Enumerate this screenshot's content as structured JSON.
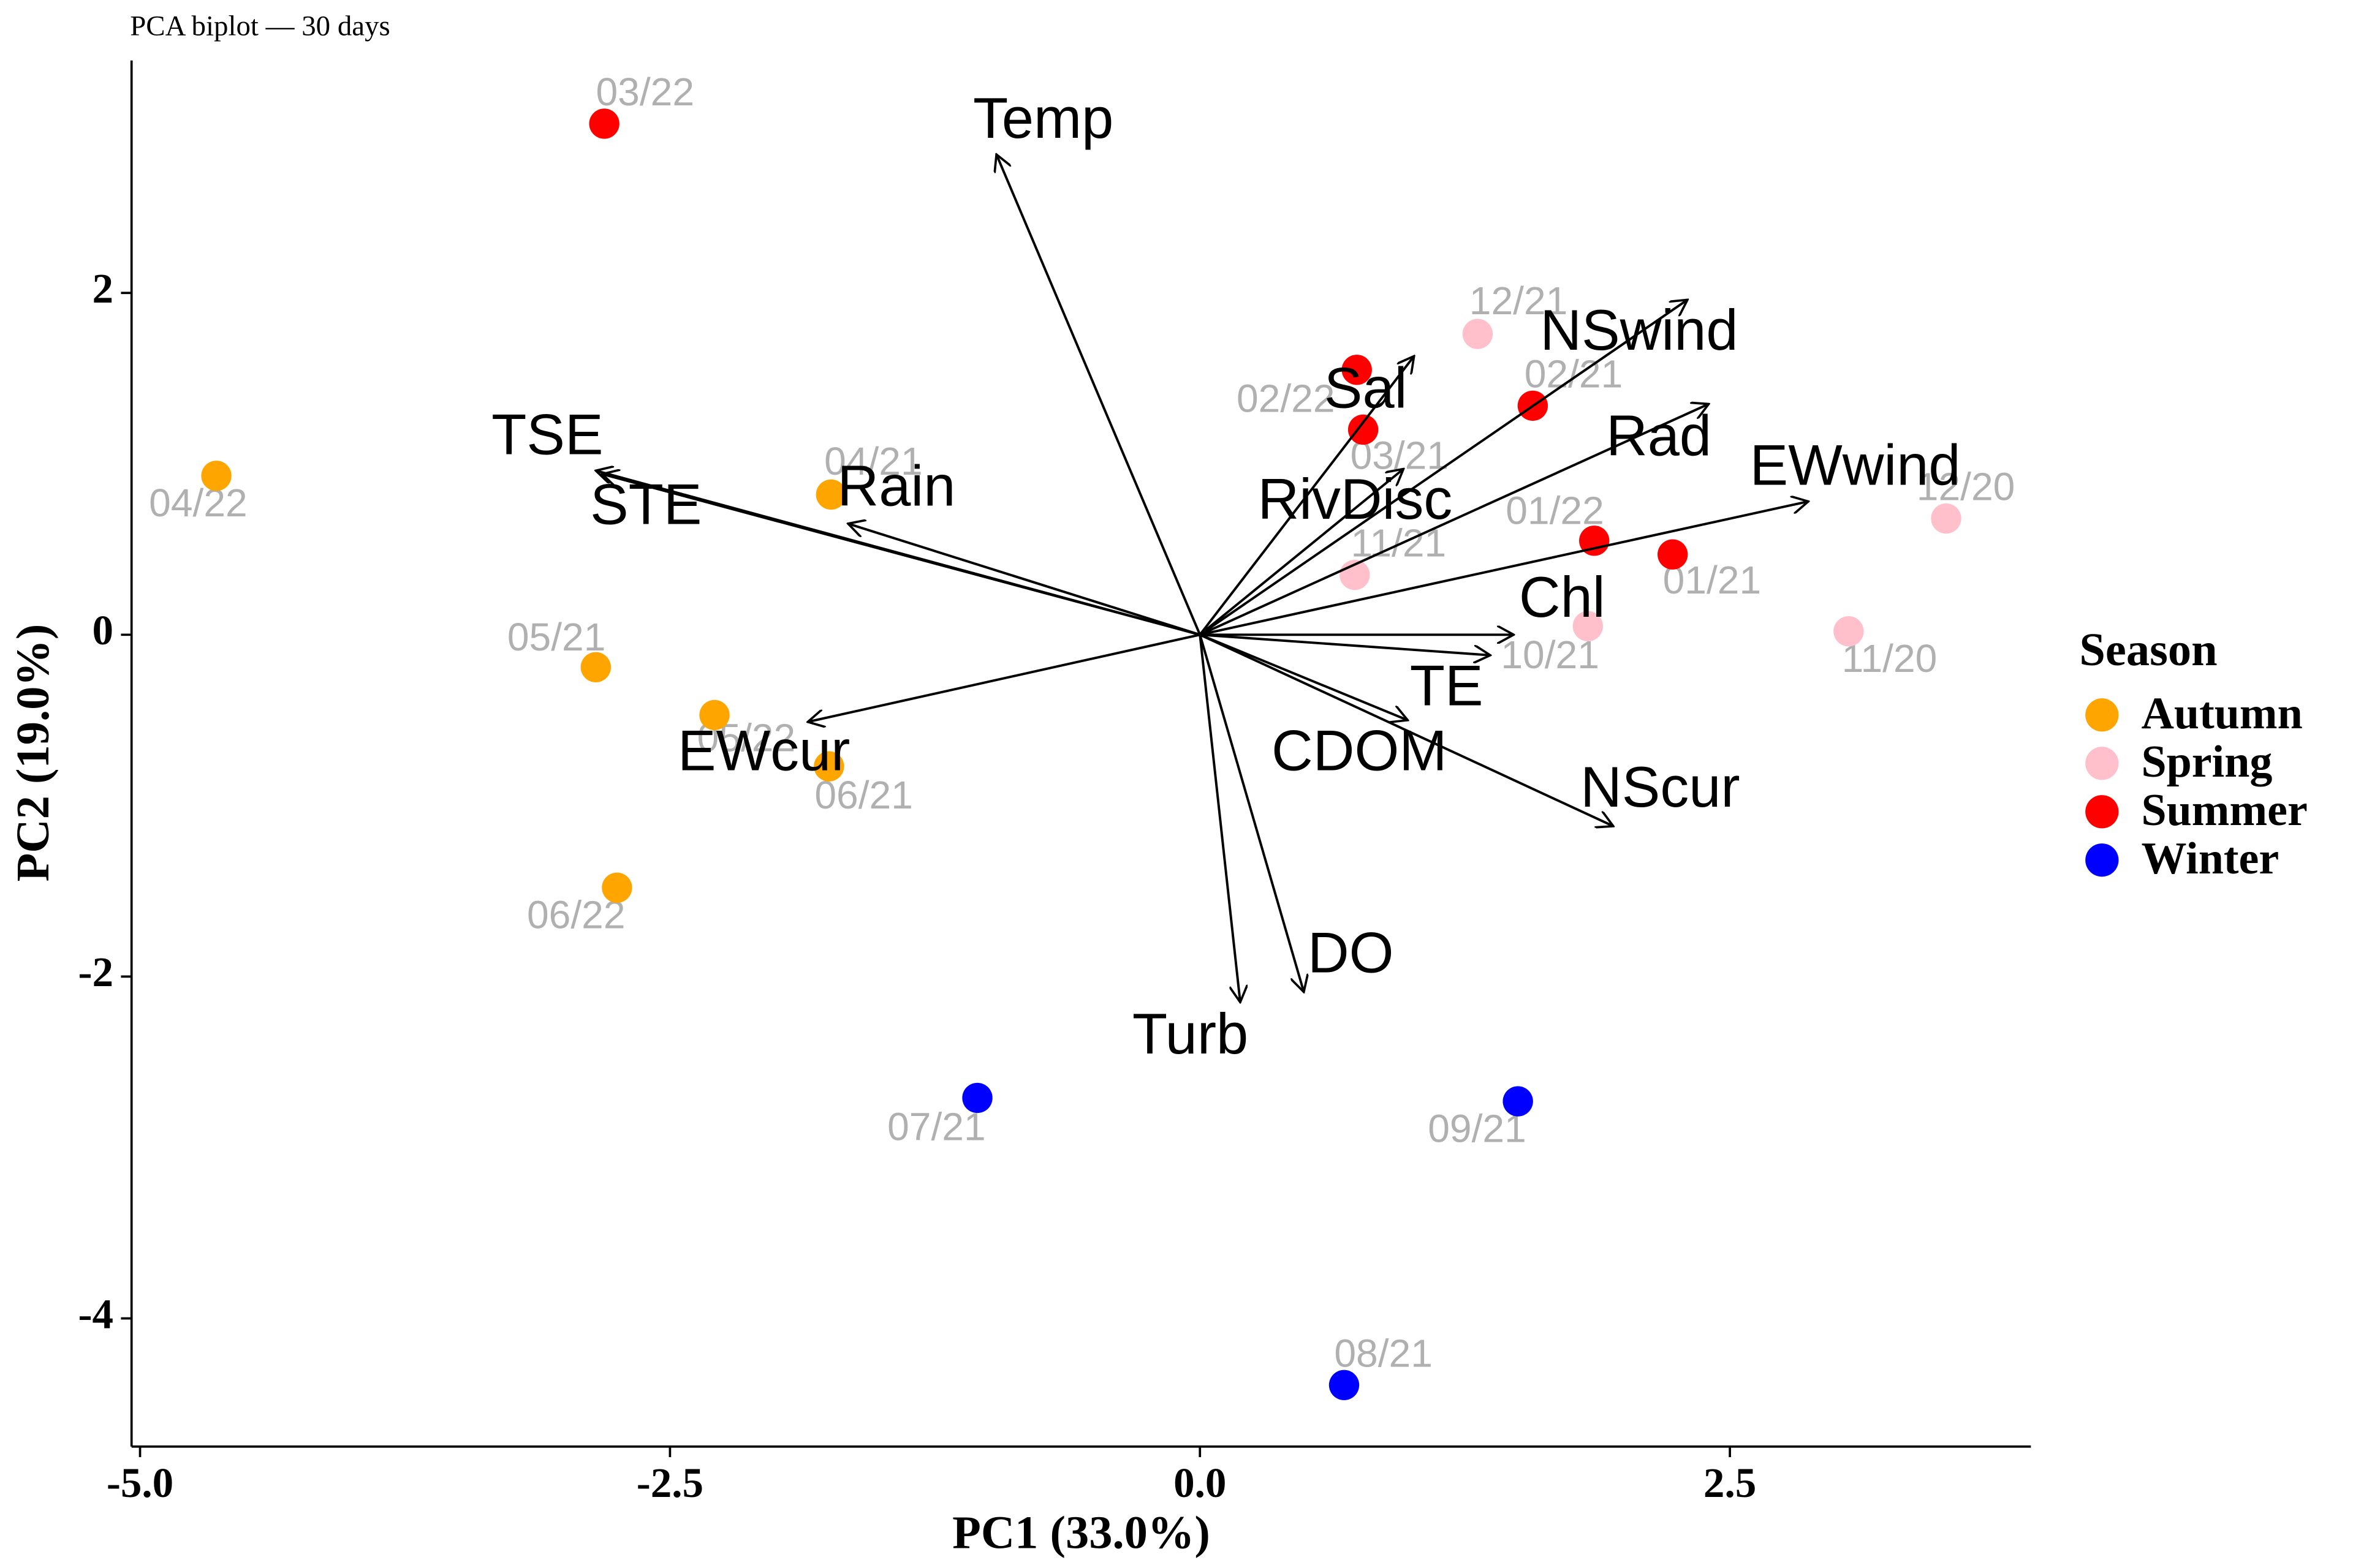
{
  "chart_data": {
    "type": "biplot",
    "title": "PCA biplot — 30 days",
    "x_label": "PC1 (33.0%)",
    "y_label": "PC2 (19.0%)",
    "xlim": [
      -5.04,
      3.92
    ],
    "ylim": [
      -4.75,
      3.36
    ],
    "xticks": [
      {
        "value": -5,
        "label": "-5.0"
      },
      -2.5,
      {
        "value": 0,
        "label": "0.0"
      },
      2.5
    ],
    "yticks": [
      -4,
      -2,
      0,
      2
    ],
    "legend_title": "Season",
    "legend_position": "right",
    "series": [
      {
        "name": "Autumn",
        "color": "#FFA500",
        "x": [
          -4.64,
          -1.74,
          -2.85,
          -2.29,
          -1.75,
          -2.75
        ],
        "values": [
          0.93,
          0.82,
          -0.19,
          -0.47,
          -0.77,
          -1.48
        ],
        "labels": [
          "04/22",
          "04/21",
          "05/21",
          "05/22",
          "06/21",
          "06/22"
        ]
      },
      {
        "name": "Spring",
        "color": "#FFC0CB",
        "x": [
          1.31,
          0.73,
          1.83,
          3.52,
          3.06
        ],
        "values": [
          1.76,
          0.35,
          0.05,
          0.68,
          0.02
        ],
        "labels": [
          "12/21",
          "11/21",
          "10/21",
          "12/20",
          "11/20"
        ]
      },
      {
        "name": "Summer",
        "color": "#FF0000",
        "x": [
          -2.81,
          0.74,
          0.77,
          1.57,
          1.86,
          2.23
        ],
        "values": [
          2.99,
          1.55,
          1.2,
          1.34,
          0.55,
          0.47
        ],
        "labels": [
          "03/22",
          "02/22",
          "03/21",
          "02/21",
          "01/22",
          "01/21"
        ]
      },
      {
        "name": "Winter",
        "color": "#0000FF",
        "x": [
          -1.05,
          0.68,
          1.5
        ],
        "values": [
          -2.71,
          -4.39,
          -2.73
        ],
        "labels": [
          "07/21",
          "08/21",
          "09/21"
        ]
      }
    ],
    "loadings": {
      "names": [
        "TSE",
        "STE",
        "Rain",
        "Temp",
        "Sal",
        "NSwind",
        "Rad",
        "EWwind",
        "RivDisc",
        "Chl",
        "TE",
        "CDOM",
        "NScur",
        "EWcur",
        "DO",
        "Turb"
      ],
      "x": [
        -2.85,
        -2.82,
        -1.66,
        -0.96,
        1.01,
        2.3,
        2.4,
        2.87,
        0.96,
        1.48,
        1.37,
        0.98,
        1.95,
        -1.85,
        0.49,
        0.19
      ],
      "values": [
        0.96,
        0.94,
        0.65,
        2.81,
        1.63,
        1.96,
        1.35,
        0.78,
        0.97,
        0.0,
        -0.12,
        -0.5,
        -1.12,
        -0.51,
        -2.09,
        -2.15
      ]
    }
  }
}
